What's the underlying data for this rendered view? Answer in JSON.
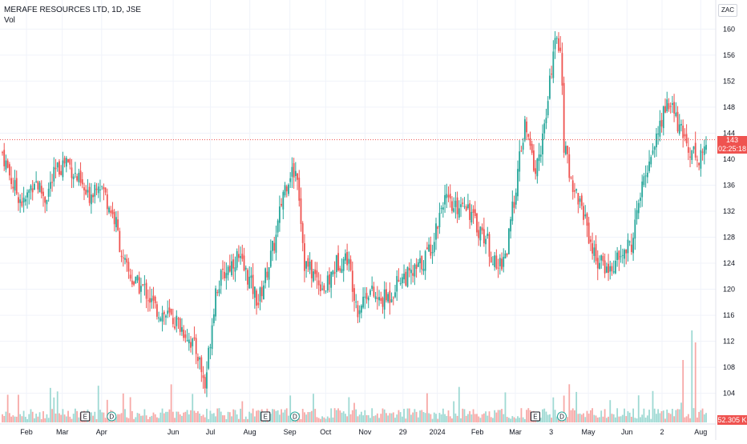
{
  "header": {
    "title": "MERAFE RESOURCES LTD, 1D, JSE",
    "subtitle": "Vol"
  },
  "currency": "ZAC",
  "last_price": {
    "value": "143",
    "countdown": "02:25:18"
  },
  "volume_label": "52.305 K",
  "colors": {
    "up": "#26a69a",
    "down": "#ef5350",
    "up_vol": "#9ed9d3",
    "down_vol": "#f7a9a7",
    "grid": "#f0f3fa"
  },
  "chart_data": {
    "type": "candlestick",
    "ylim": [
      101,
      163
    ],
    "y_ticks": [
      104,
      108,
      112,
      116,
      120,
      124,
      128,
      132,
      136,
      140,
      144,
      148,
      152,
      156,
      160
    ],
    "x_ticks": [
      {
        "label": "Feb",
        "pos": 0.037
      },
      {
        "label": "Mar",
        "pos": 0.087
      },
      {
        "label": "Apr",
        "pos": 0.142
      },
      {
        "label": "Jun",
        "pos": 0.242
      },
      {
        "label": "Jul",
        "pos": 0.294
      },
      {
        "label": "Aug",
        "pos": 0.349
      },
      {
        "label": "Sep",
        "pos": 0.405
      },
      {
        "label": "Oct",
        "pos": 0.455
      },
      {
        "label": "Nov",
        "pos": 0.51
      },
      {
        "label": "29",
        "pos": 0.563
      },
      {
        "label": "2024",
        "pos": 0.611
      },
      {
        "label": "Feb",
        "pos": 0.667
      },
      {
        "label": "Mar",
        "pos": 0.72
      },
      {
        "label": "3",
        "pos": 0.77
      },
      {
        "label": "May",
        "pos": 0.822
      },
      {
        "label": "Jun",
        "pos": 0.876
      },
      {
        "label": "2",
        "pos": 0.925
      },
      {
        "label": "Aug",
        "pos": 0.979
      }
    ],
    "events": [
      {
        "label": "E",
        "pos": 0.119
      },
      {
        "label": "D",
        "pos": 0.156
      },
      {
        "label": "E",
        "pos": 0.371
      },
      {
        "label": "D",
        "pos": 0.412
      },
      {
        "label": "E",
        "pos": 0.748
      },
      {
        "label": "D",
        "pos": 0.785
      }
    ],
    "anchors": [
      [
        0,
        141
      ],
      [
        6,
        136
      ],
      [
        12,
        133
      ],
      [
        18,
        137
      ],
      [
        24,
        134
      ],
      [
        30,
        138
      ],
      [
        36,
        140
      ],
      [
        42,
        137
      ],
      [
        48,
        134
      ],
      [
        54,
        137
      ],
      [
        60,
        133
      ],
      [
        64,
        130
      ],
      [
        68,
        124
      ],
      [
        74,
        121
      ],
      [
        80,
        120
      ],
      [
        86,
        117
      ],
      [
        92,
        116
      ],
      [
        98,
        115
      ],
      [
        104,
        113
      ],
      [
        110,
        110
      ],
      [
        114,
        105
      ],
      [
        120,
        120
      ],
      [
        126,
        123
      ],
      [
        132,
        125
      ],
      [
        138,
        122
      ],
      [
        144,
        118
      ],
      [
        150,
        124
      ],
      [
        154,
        128
      ],
      [
        158,
        135
      ],
      [
        162,
        138
      ],
      [
        166,
        138
      ],
      [
        170,
        124
      ],
      [
        176,
        122
      ],
      [
        182,
        120
      ],
      [
        188,
        124
      ],
      [
        194,
        125
      ],
      [
        200,
        117
      ],
      [
        206,
        120
      ],
      [
        212,
        118
      ],
      [
        218,
        119
      ],
      [
        224,
        122
      ],
      [
        230,
        122
      ],
      [
        236,
        124
      ],
      [
        242,
        127
      ],
      [
        248,
        134
      ],
      [
        254,
        132
      ],
      [
        260,
        134
      ],
      [
        266,
        130
      ],
      [
        272,
        128
      ],
      [
        278,
        123
      ],
      [
        284,
        126
      ],
      [
        290,
        138
      ],
      [
        294,
        145
      ],
      [
        300,
        138
      ],
      [
        306,
        146
      ],
      [
        310,
        157
      ],
      [
        314,
        158
      ],
      [
        316,
        142
      ],
      [
        320,
        137
      ],
      [
        324,
        134
      ],
      [
        328,
        131
      ],
      [
        332,
        126
      ],
      [
        336,
        124
      ],
      [
        342,
        123
      ],
      [
        348,
        125
      ],
      [
        354,
        127
      ],
      [
        358,
        133
      ],
      [
        364,
        140
      ],
      [
        370,
        145
      ],
      [
        374,
        149
      ],
      [
        378,
        147
      ],
      [
        382,
        144
      ],
      [
        386,
        142
      ],
      [
        392,
        140
      ],
      [
        396,
        142
      ]
    ],
    "last_index": 396,
    "seed": 7
  }
}
